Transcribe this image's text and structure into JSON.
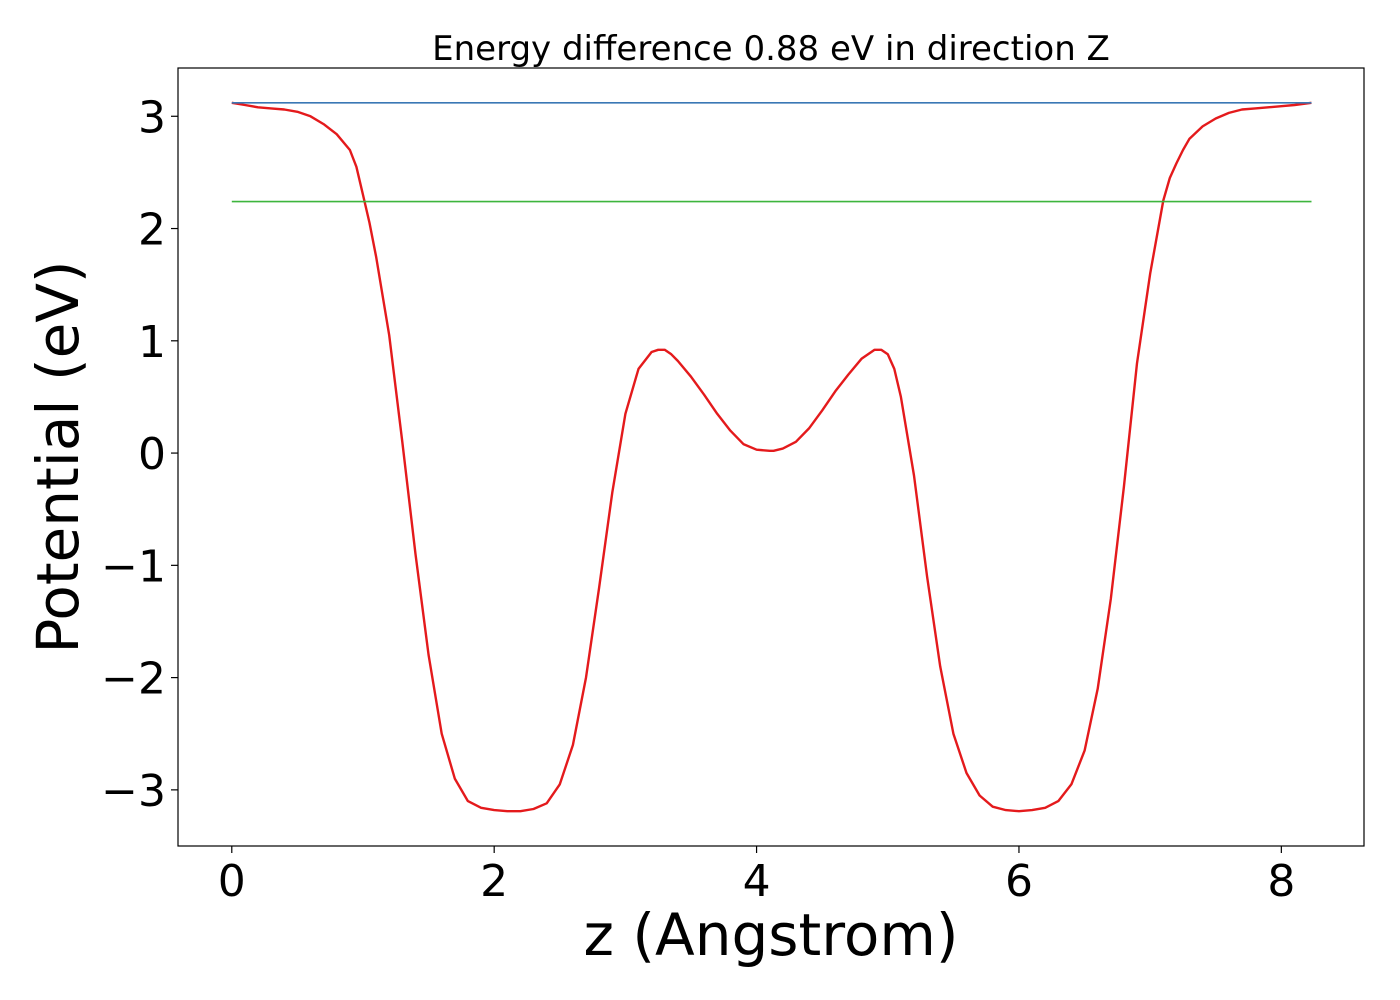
{
  "chart_data": {
    "type": "line",
    "title": "Energy difference 0.88 eV in direction Z",
    "xlabel": "z (Angstrom)",
    "ylabel": "Potential (eV)",
    "xlim": [
      -0.41,
      8.63
    ],
    "ylim": [
      -3.5,
      3.43
    ],
    "xticks": [
      0,
      2,
      4,
      6,
      8
    ],
    "yticks": [
      3,
      2,
      1,
      0,
      -1,
      -2,
      -3
    ],
    "xtick_labels": [
      "0",
      "2",
      "4",
      "6",
      "8"
    ],
    "ytick_labels": [
      "3",
      "2",
      "1",
      "0",
      "−1",
      "−2",
      "−3"
    ],
    "grid": false,
    "legend": "none",
    "series": [
      {
        "color": "#e41a1c",
        "x": [
          0.0,
          0.1,
          0.2,
          0.3,
          0.4,
          0.5,
          0.6,
          0.7,
          0.8,
          0.9,
          0.95,
          1.0,
          1.05,
          1.1,
          1.2,
          1.3,
          1.4,
          1.5,
          1.6,
          1.7,
          1.8,
          1.9,
          2.0,
          2.1,
          2.2,
          2.3,
          2.4,
          2.5,
          2.6,
          2.7,
          2.8,
          2.9,
          3.0,
          3.1,
          3.2,
          3.25,
          3.3,
          3.35,
          3.4,
          3.5,
          3.6,
          3.7,
          3.8,
          3.9,
          4.0,
          4.1,
          4.13,
          4.2,
          4.3,
          4.4,
          4.5,
          4.6,
          4.7,
          4.8,
          4.9,
          4.95,
          5.0,
          5.05,
          5.1,
          5.2,
          5.3,
          5.4,
          5.5,
          5.6,
          5.7,
          5.8,
          5.9,
          6.0,
          6.1,
          6.2,
          6.3,
          6.4,
          6.5,
          6.6,
          6.7,
          6.8,
          6.9,
          7.0,
          7.1,
          7.15,
          7.2,
          7.25,
          7.3,
          7.4,
          7.5,
          7.6,
          7.7,
          7.8,
          7.9,
          8.0,
          8.1,
          8.23
        ],
        "y": [
          3.12,
          3.1,
          3.08,
          3.07,
          3.06,
          3.04,
          3.0,
          2.93,
          2.84,
          2.7,
          2.55,
          2.3,
          2.05,
          1.75,
          1.05,
          0.1,
          -0.9,
          -1.8,
          -2.5,
          -2.9,
          -3.1,
          -3.16,
          -3.18,
          -3.19,
          -3.19,
          -3.17,
          -3.12,
          -2.95,
          -2.6,
          -2.0,
          -1.2,
          -0.35,
          0.35,
          0.75,
          0.9,
          0.92,
          0.92,
          0.88,
          0.82,
          0.68,
          0.52,
          0.35,
          0.2,
          0.08,
          0.03,
          0.02,
          0.02,
          0.04,
          0.1,
          0.22,
          0.38,
          0.55,
          0.7,
          0.84,
          0.92,
          0.92,
          0.88,
          0.75,
          0.5,
          -0.2,
          -1.1,
          -1.9,
          -2.5,
          -2.85,
          -3.05,
          -3.15,
          -3.18,
          -3.19,
          -3.18,
          -3.16,
          -3.1,
          -2.95,
          -2.65,
          -2.1,
          -1.3,
          -0.3,
          0.8,
          1.6,
          2.25,
          2.45,
          2.58,
          2.7,
          2.8,
          2.91,
          2.98,
          3.03,
          3.06,
          3.07,
          3.08,
          3.09,
          3.1,
          3.12
        ]
      },
      {
        "color": "#3a78b5",
        "x": [
          0.0,
          8.23
        ],
        "y": [
          3.12,
          3.12
        ]
      },
      {
        "color": "#3db53d",
        "x": [
          0.0,
          8.23
        ],
        "y": [
          2.24,
          2.24
        ]
      }
    ]
  }
}
